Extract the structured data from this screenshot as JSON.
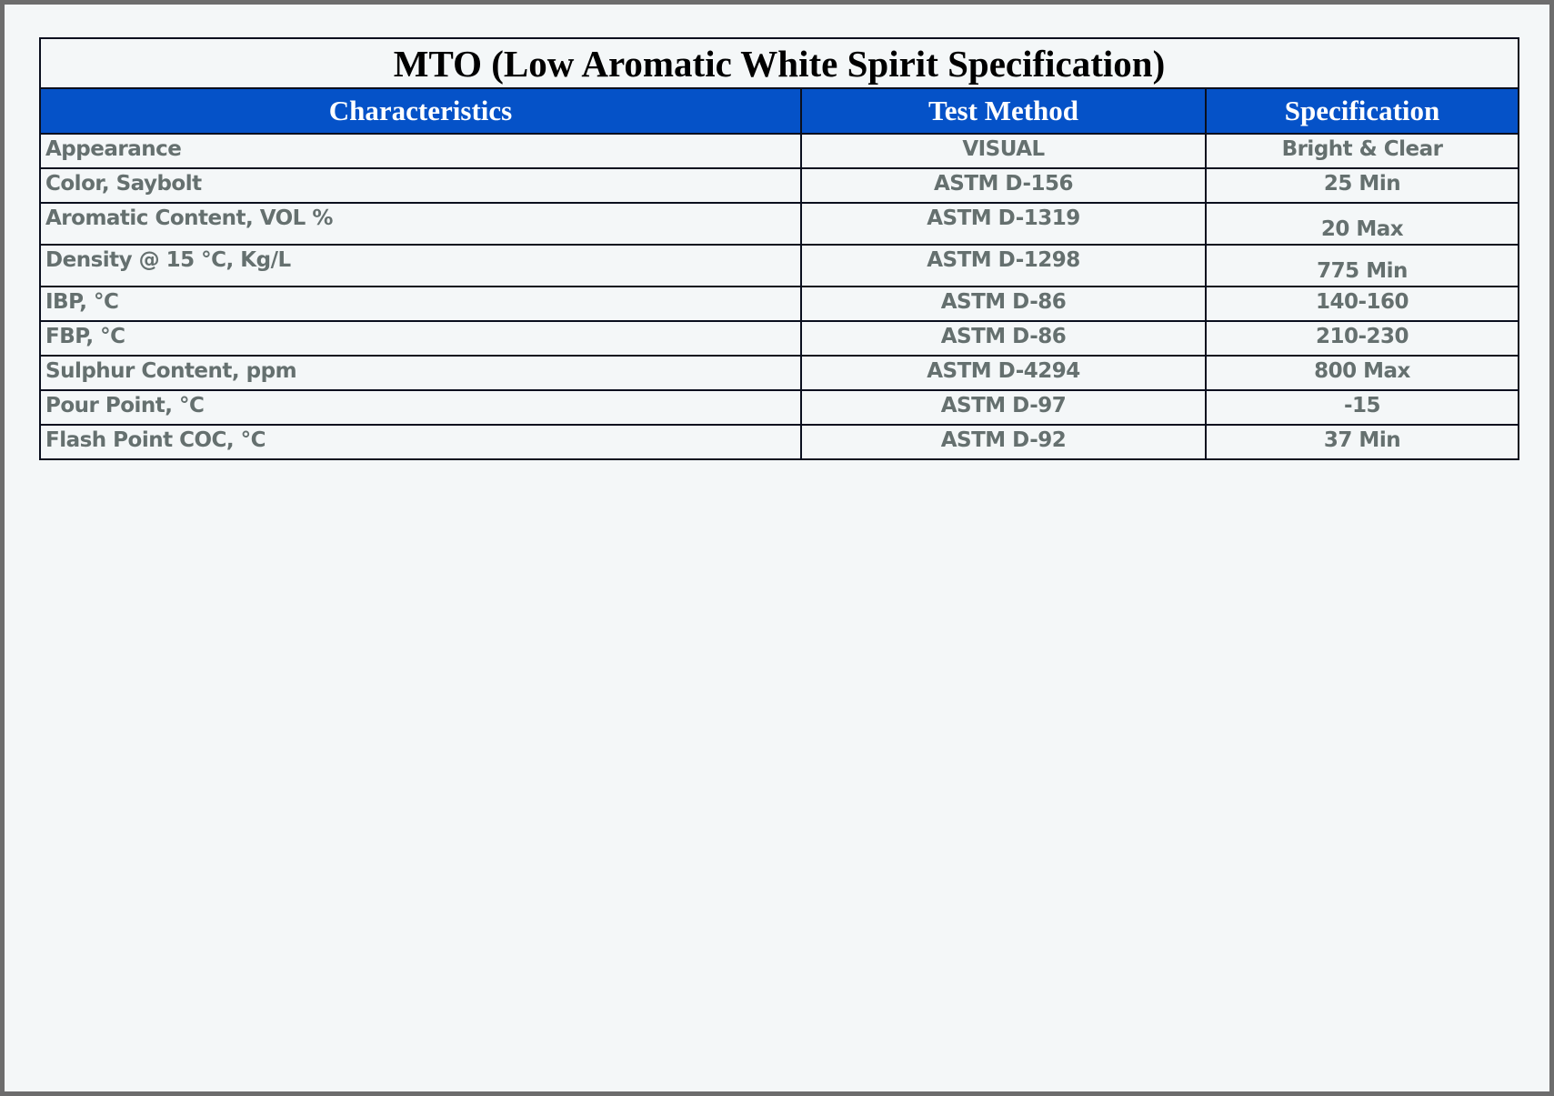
{
  "title": "MTO (Low Aromatic White Spirit Specification)",
  "headers": [
    "Characteristics",
    "Test Method",
    "Specification"
  ],
  "rows": [
    [
      "Appearance",
      "VISUAL",
      "Bright & Clear"
    ],
    [
      "Color, Saybolt",
      "ASTM D-156",
      "25 Min"
    ],
    [
      "Aromatic Content, VOL %",
      "ASTM D-1319",
      "20 Max"
    ],
    [
      "Density @ 15 °C, Kg/L",
      "ASTM D-1298",
      "775 Min"
    ],
    [
      "IBP, °C",
      "ASTM D-86",
      "140-160"
    ],
    [
      "FBP, °C",
      "ASTM D-86",
      "210-230"
    ],
    [
      "Sulphur Content, ppm",
      "ASTM D-4294",
      "800 Max"
    ],
    [
      "Pour Point, °C",
      "ASTM D-97",
      "-15"
    ],
    [
      "Flash Point COC, °C",
      "ASTM D-92",
      "37 Min"
    ]
  ],
  "colors": {
    "header_bg": "#0552c8",
    "text": "#65706f",
    "background": "#f4f7f8"
  }
}
